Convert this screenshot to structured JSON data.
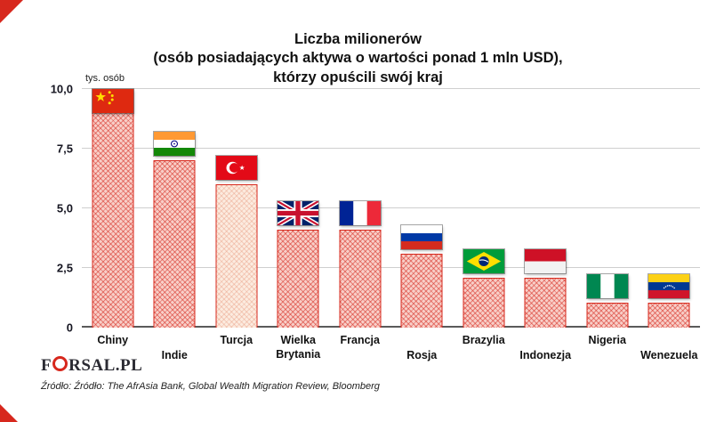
{
  "title": {
    "line1": "Liczba milionerów",
    "line2": "(osób posiadających aktywa o wartości ponad 1 mln USD),",
    "line3": "którzy opuścili swój kraj"
  },
  "y_axis": {
    "unit_label": "tys. osób",
    "ticks": [
      "0",
      "2,5",
      "5,0",
      "7,5",
      "10,0"
    ],
    "tick_values": [
      0,
      2.5,
      5,
      7.5,
      10
    ]
  },
  "chart_data": {
    "type": "bar",
    "title": "Liczba milionerów (osób posiadających aktywa o wartości ponad 1 mln USD), którzy opuścili swój kraj",
    "xlabel": "",
    "ylabel": "tys. osób",
    "ylim": [
      0,
      10
    ],
    "grid": "horizontal",
    "categories": [
      "Chiny",
      "Indie",
      "Turcja",
      "Wielka Brytania",
      "Francja",
      "Rosja",
      "Brazylia",
      "Indonezja",
      "Nigeria",
      "Wenezuela"
    ],
    "values": [
      10,
      7,
      6,
      4.1,
      4.1,
      3.1,
      2.1,
      2.1,
      1.05,
      1.05
    ],
    "flags": [
      "china-flag",
      "india-flag",
      "turkey-flag",
      "uk-flag",
      "france-flag",
      "russia-flag",
      "brazil-flag",
      "indonesia-flag",
      "nigeria-flag",
      "venezuela-flag"
    ],
    "label_rows": [
      1,
      2,
      1,
      1,
      1,
      2,
      1,
      2,
      1,
      2
    ],
    "highlight_category": "Turcja",
    "bar_color": "#d7281d",
    "bar_fill": "#f8cfc8"
  },
  "footer": {
    "logo_pre": "F",
    "logo_post": "RSAL.PL",
    "source": "Źródło: Źródło: The AfrAsia Bank, Global Wealth Migration Review, Bloomberg"
  }
}
